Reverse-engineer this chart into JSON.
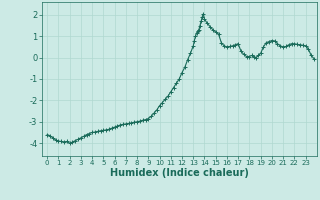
{
  "xlabel": "Humidex (Indice chaleur)",
  "bg_color": "#cceae5",
  "grid_color": "#b0d8d0",
  "line_color": "#1a6b5a",
  "xlim": [
    -0.5,
    24
  ],
  "ylim": [
    -4.6,
    2.6
  ],
  "yticks": [
    -4,
    -3,
    -2,
    -1,
    0,
    1,
    2
  ],
  "xticks": [
    0,
    1,
    2,
    3,
    4,
    5,
    6,
    7,
    8,
    9,
    10,
    11,
    12,
    13,
    14,
    15,
    16,
    17,
    18,
    19,
    20,
    21,
    22,
    23
  ],
  "x": [
    0,
    0.25,
    0.5,
    0.75,
    1.0,
    1.25,
    1.5,
    1.75,
    2.0,
    2.25,
    2.5,
    2.75,
    3.0,
    3.25,
    3.5,
    3.75,
    4.0,
    4.25,
    4.5,
    4.75,
    5.0,
    5.25,
    5.5,
    5.75,
    6.0,
    6.25,
    6.5,
    6.75,
    7.0,
    7.25,
    7.5,
    7.75,
    8.0,
    8.25,
    8.5,
    8.75,
    9.0,
    9.25,
    9.5,
    9.75,
    10.0,
    10.25,
    10.5,
    10.75,
    11.0,
    11.25,
    11.5,
    11.75,
    12.0,
    12.25,
    12.5,
    12.75,
    13.0,
    13.1,
    13.2,
    13.3,
    13.4,
    13.5,
    13.6,
    13.7,
    13.8,
    13.9,
    14.0,
    14.25,
    14.5,
    14.75,
    15.0,
    15.25,
    15.5,
    15.75,
    16.0,
    16.25,
    16.5,
    16.75,
    17.0,
    17.25,
    17.5,
    17.75,
    18.0,
    18.2,
    18.4,
    18.6,
    18.8,
    19.0,
    19.25,
    19.5,
    19.75,
    20.0,
    20.25,
    20.5,
    20.75,
    21.0,
    21.25,
    21.5,
    21.75,
    22.0,
    22.25,
    22.5,
    22.75,
    23.0,
    23.25,
    23.5,
    23.75
  ],
  "y": [
    -3.6,
    -3.65,
    -3.75,
    -3.85,
    -3.9,
    -3.92,
    -3.95,
    -3.92,
    -4.0,
    -3.95,
    -3.88,
    -3.82,
    -3.75,
    -3.68,
    -3.6,
    -3.55,
    -3.5,
    -3.48,
    -3.45,
    -3.42,
    -3.4,
    -3.38,
    -3.35,
    -3.3,
    -3.25,
    -3.2,
    -3.15,
    -3.12,
    -3.1,
    -3.08,
    -3.05,
    -3.02,
    -3.0,
    -2.97,
    -2.93,
    -2.9,
    -2.85,
    -2.75,
    -2.6,
    -2.45,
    -2.25,
    -2.1,
    -1.95,
    -1.8,
    -1.6,
    -1.4,
    -1.2,
    -1.0,
    -0.7,
    -0.45,
    -0.1,
    0.2,
    0.55,
    0.8,
    1.0,
    1.15,
    1.25,
    1.3,
    1.5,
    1.7,
    1.9,
    2.05,
    1.8,
    1.6,
    1.45,
    1.3,
    1.2,
    1.1,
    0.7,
    0.55,
    0.5,
    0.52,
    0.55,
    0.6,
    0.65,
    0.3,
    0.15,
    0.05,
    0.05,
    0.1,
    0.05,
    0.0,
    0.1,
    0.2,
    0.5,
    0.7,
    0.75,
    0.8,
    0.78,
    0.65,
    0.55,
    0.5,
    0.52,
    0.6,
    0.65,
    0.65,
    0.62,
    0.6,
    0.58,
    0.55,
    0.4,
    0.1,
    -0.05
  ],
  "marker": "+",
  "markersize": 3,
  "markeredgewidth": 0.7,
  "linewidth": 0.8
}
